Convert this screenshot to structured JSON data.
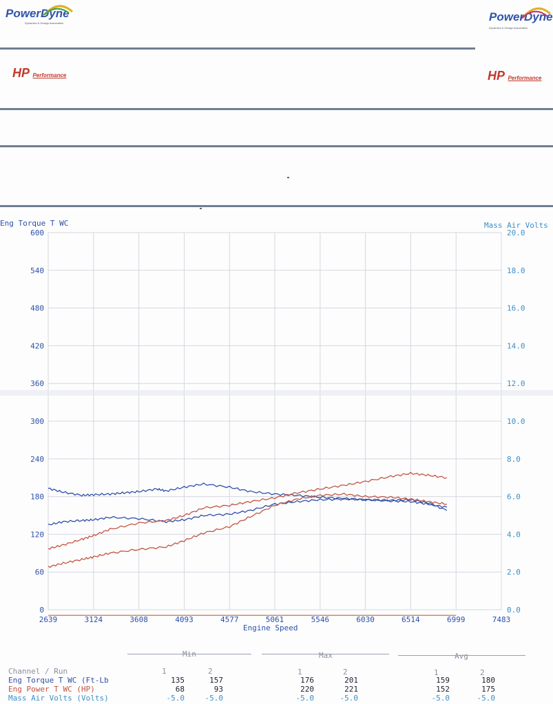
{
  "header": {
    "powerdyne_logo": "PowerDyne",
    "powerdyne_tagline": "Dynamics & Design Association",
    "hp_logo": "HP",
    "hp_logo_sub": "Performance"
  },
  "chart_data": {
    "type": "line",
    "title": "",
    "xlabel": "Engine Speed",
    "ylabel_left": "Eng Torque T WC",
    "ylabel_right": "Mass Air Volts",
    "x_ticks": [
      "2639",
      "3124",
      "3608",
      "4093",
      "4577",
      "5061",
      "5546",
      "6030",
      "6514",
      "6999",
      "7483"
    ],
    "y_left_ticks": [
      "0",
      "60",
      "120",
      "180",
      "240",
      "300",
      "360",
      "420",
      "480",
      "540",
      "600"
    ],
    "y_right_ticks": [
      "0.0",
      "2.0",
      "4.0",
      "6.0",
      "8.0",
      "10.0",
      "12.0",
      "14.0",
      "16.0",
      "18.0",
      "20.0"
    ],
    "xlim": [
      2639,
      7483
    ],
    "ylim_left": [
      0,
      600
    ],
    "ylim_right": [
      0,
      20
    ],
    "grid": true,
    "series": [
      {
        "name": "Eng Torque T WC (Ft-Lb)",
        "run": "1",
        "color": "#2e4fa6",
        "x": [
          2639,
          2800,
          3000,
          3124,
          3300,
          3450,
          3608,
          3800,
          3900,
          4093,
          4300,
          4577,
          4800,
          5061,
          5300,
          5546,
          5800,
          6030,
          6300,
          6514,
          6700,
          6900
        ],
        "y": [
          193,
          187,
          182,
          183,
          184,
          186,
          188,
          192,
          189,
          195,
          200,
          195,
          188,
          184,
          182,
          179,
          177,
          175,
          173,
          172,
          168,
          163
        ]
      },
      {
        "name": "Eng Torque T WC (Ft-Lb)",
        "run": "2",
        "color": "#2e4fa6",
        "x": [
          2639,
          2800,
          3000,
          3124,
          3300,
          3608,
          3900,
          4093,
          4300,
          4577,
          4800,
          5061,
          5300,
          5546,
          5800,
          6030,
          6300,
          6514,
          6700,
          6900
        ],
        "y": [
          135,
          140,
          142,
          143,
          147,
          145,
          140,
          143,
          150,
          152,
          158,
          168,
          172,
          175,
          176,
          175,
          174,
          175,
          170,
          158
        ]
      },
      {
        "name": "Eng Power T WC (HP)",
        "run": "1",
        "color": "#c2533f",
        "x": [
          2639,
          2800,
          3000,
          3124,
          3300,
          3608,
          3900,
          4093,
          4300,
          4577,
          4800,
          5061,
          5300,
          5546,
          5800,
          6030,
          6300,
          6514,
          6700,
          6900
        ],
        "y": [
          68,
          74,
          80,
          84,
          90,
          96,
          100,
          110,
          122,
          132,
          148,
          166,
          176,
          182,
          184,
          180,
          179,
          176,
          172,
          168
        ]
      },
      {
        "name": "Eng Power T WC (HP)",
        "run": "2",
        "color": "#c2533f",
        "x": [
          2639,
          2800,
          3000,
          3124,
          3300,
          3608,
          3900,
          4093,
          4300,
          4577,
          4800,
          5061,
          5300,
          5546,
          5800,
          6030,
          6300,
          6514,
          6700,
          6900
        ],
        "y": [
          97,
          103,
          112,
          118,
          128,
          138,
          142,
          150,
          162,
          166,
          172,
          178,
          186,
          192,
          198,
          204,
          212,
          217,
          214,
          210
        ]
      },
      {
        "name": "Mass Air Volts (Volts)",
        "run": "1",
        "color": "#d9774a",
        "x": [
          2639,
          6999
        ],
        "y": [
          0,
          0
        ]
      }
    ]
  },
  "stats": {
    "group_min": "Min",
    "group_max": "Max",
    "group_avg": "Avg",
    "header_label": "Channel / Run",
    "run1": "1",
    "run2": "2",
    "rows": [
      {
        "label": "Eng Torque T WC (Ft-Lb",
        "color": "#2e4fa6",
        "min1": "135",
        "min2": "157",
        "max1": "176",
        "max2": "201",
        "avg1": "159",
        "avg2": "180"
      },
      {
        "label": "Eng Power T WC (HP)",
        "color": "#c2533f",
        "min1": "68",
        "min2": "93",
        "max1": "220",
        "max2": "221",
        "avg1": "152",
        "avg2": "175"
      },
      {
        "label": "Mass Air Volts (Volts)",
        "color": "#3d8fc4",
        "min1": "-5.0",
        "min2": "-5.0",
        "max1": "-5.0",
        "max2": "-5.0",
        "avg1": "-5.0",
        "avg2": "-5.0"
      }
    ]
  }
}
